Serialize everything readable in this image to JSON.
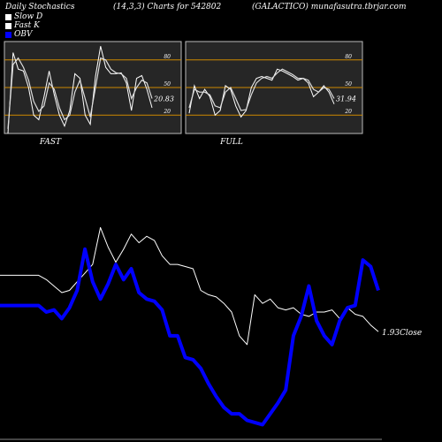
{
  "header": {
    "left": "Daily Stochastics",
    "middle": "(14,3,3) Charts for 542802",
    "right": "(GALACTICO) munafasutra.tbrjar.com"
  },
  "legend": [
    {
      "label": "Slow  D",
      "color": "#ffffff"
    },
    {
      "label": "Fast K",
      "color": "#ffffff"
    },
    {
      "label": "OBV",
      "color": "#0000ff"
    }
  ],
  "colors": {
    "background": "#000000",
    "panel": "#262626",
    "band": "#cc8800",
    "price": "#ffffff",
    "obv": "#0000ff"
  },
  "chart_data": [
    {
      "type": "line",
      "title": "FAST",
      "ylim": [
        0,
        100
      ],
      "yticks": [
        "80",
        "50",
        "20"
      ],
      "last_label": "20.83",
      "series": [
        {
          "name": "Fast K",
          "values": [
            0,
            88,
            70,
            68,
            50,
            20,
            15,
            40,
            68,
            42,
            20,
            8,
            25,
            65,
            60,
            20,
            10,
            62,
            95,
            72,
            65,
            65,
            66,
            55,
            25,
            60,
            63,
            48,
            28
          ]
        },
        {
          "name": "Slow  D",
          "values": [
            5,
            75,
            82,
            72,
            58,
            35,
            24,
            30,
            55,
            48,
            28,
            15,
            20,
            45,
            58,
            38,
            18,
            50,
            82,
            80,
            70,
            66,
            65,
            60,
            38,
            50,
            58,
            55,
            38
          ]
        }
      ]
    },
    {
      "type": "line",
      "title": "FULL",
      "ylim": [
        0,
        100
      ],
      "yticks": [
        "80",
        "50",
        "20"
      ],
      "last_label": "31.94",
      "series": [
        {
          "name": "Fast K",
          "values": [
            22,
            52,
            38,
            48,
            40,
            20,
            25,
            52,
            48,
            30,
            18,
            25,
            50,
            60,
            62,
            60,
            58,
            70,
            68,
            65,
            62,
            58,
            60,
            55,
            40,
            45,
            52,
            45,
            32
          ]
        },
        {
          "name": "Slow  D",
          "values": [
            28,
            48,
            45,
            45,
            42,
            30,
            28,
            45,
            50,
            38,
            25,
            26,
            42,
            55,
            60,
            62,
            60,
            66,
            70,
            67,
            64,
            60,
            60,
            58,
            48,
            45,
            50,
            48,
            38
          ]
        }
      ]
    },
    {
      "type": "line",
      "ylim": [
        0,
        100
      ],
      "last_label": "1.93Close",
      "series": [
        {
          "name": "Close",
          "values": [
            77,
            77,
            77,
            77,
            77,
            77,
            75,
            72,
            69,
            70,
            74,
            78,
            82,
            99,
            90,
            83,
            89,
            96,
            92,
            95,
            93,
            86,
            82,
            82,
            81,
            80,
            70,
            68,
            67,
            64,
            60,
            49,
            45,
            68,
            64,
            66,
            62,
            61,
            62,
            59,
            58,
            60,
            60,
            61,
            57,
            62,
            59,
            58,
            54,
            51
          ]
        },
        {
          "name": "OBV",
          "values": [
            63,
            63,
            63,
            63,
            63,
            63,
            60,
            61,
            57,
            62,
            70,
            89,
            74,
            66,
            73,
            82,
            75,
            80,
            69,
            66,
            65,
            61,
            49,
            49,
            39,
            38,
            34,
            27,
            21,
            16,
            13,
            13,
            10,
            9,
            8,
            13,
            18,
            24,
            49,
            58,
            72,
            56,
            49,
            45,
            56,
            62,
            63,
            84,
            81,
            70
          ]
        }
      ]
    }
  ]
}
